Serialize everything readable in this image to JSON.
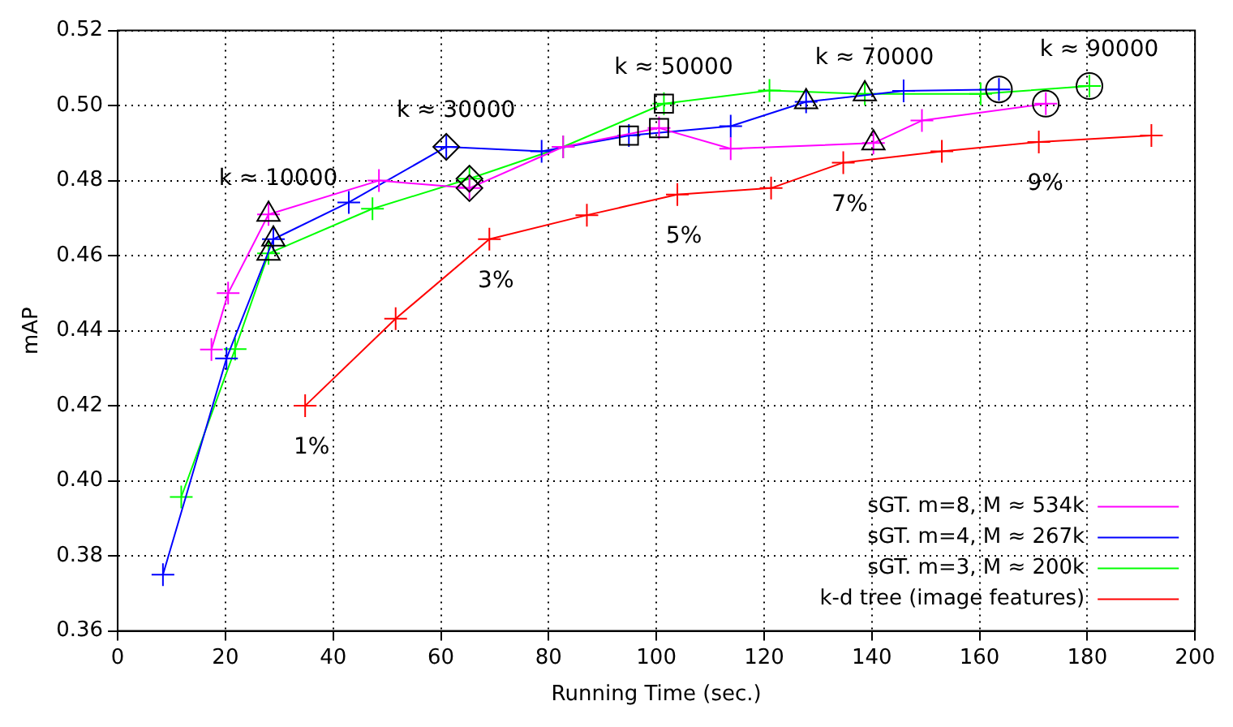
{
  "chart_data": {
    "type": "line",
    "xlabel": "Running Time (sec.)",
    "ylabel": "mAP",
    "xlim": [
      0,
      200
    ],
    "xticks": [
      0,
      20,
      40,
      60,
      80,
      100,
      120,
      140,
      160,
      180,
      200
    ],
    "ylim": [
      0.36,
      0.52
    ],
    "yticks": [
      {
        "value": 0.36,
        "label": "0.36"
      },
      {
        "value": 0.38,
        "label": "0.38"
      },
      {
        "value": 0.4,
        "label": "0.40"
      },
      {
        "value": 0.42,
        "label": "0.42"
      },
      {
        "value": 0.44,
        "label": "0.44"
      },
      {
        "value": 0.46,
        "label": "0.46"
      },
      {
        "value": 0.48,
        "label": "0.48"
      },
      {
        "value": 0.5,
        "label": "0.50"
      },
      {
        "value": 0.52,
        "label": "0.52"
      }
    ],
    "grid": true,
    "legend": "bottom right",
    "marker": "cross",
    "line_style": "solid",
    "series": [
      {
        "name": "sGT. m=8, M ≈ 534k",
        "color": "#ff00ff",
        "x": [
          17.4,
          20.5,
          28,
          48.5,
          65.3,
          82.7,
          100.5,
          113.8,
          140.3,
          149.3,
          172.3
        ],
        "values": [
          0.435,
          0.45,
          0.471,
          0.48,
          0.478,
          0.489,
          0.494,
          0.4885,
          0.49,
          0.496,
          0.5005
        ]
      },
      {
        "name": "sGT. m=4, M ≈ 267k",
        "color": "#0000ff",
        "x": [
          8.4,
          20.2,
          28.9,
          42.9,
          61,
          78.7,
          94.9,
          113.8,
          127.8,
          145.9,
          163.6
        ],
        "values": [
          0.375,
          0.4326,
          0.4644,
          0.4742,
          0.489,
          0.4878,
          0.492,
          0.4945,
          0.501,
          0.5039,
          0.5043
        ]
      },
      {
        "name": "sGT. m=3, M ≈ 200k",
        "color": "#00ff00",
        "x": [
          11.8,
          21.8,
          28,
          47.3,
          65.3,
          82.7,
          101.4,
          121,
          138.7,
          160.2,
          180.4
        ],
        "values": [
          0.3957,
          0.4351,
          0.4606,
          0.4725,
          0.4805,
          0.489,
          0.5005,
          0.504,
          0.5031,
          0.5031,
          0.5052
        ]
      },
      {
        "name": "k-d tree (image features)",
        "color": "#ff0000",
        "x": [
          34.8,
          51.6,
          69,
          87.1,
          103.9,
          121.3,
          134.7,
          153,
          171,
          191.9
        ],
        "values": [
          0.42,
          0.4432,
          0.4644,
          0.4708,
          0.4763,
          0.478,
          0.4848,
          0.4878,
          0.4903,
          0.492
        ]
      },
      {
        "type": "scatter",
        "color": "#000000",
        "marker": "triangle",
        "x": [
          28,
          28.9,
          28
        ],
        "values": [
          0.471,
          0.4644,
          0.4606
        ]
      },
      {
        "type": "scatter",
        "color": "#000000",
        "marker": "diamond",
        "x": [
          61,
          65.3,
          65.3
        ],
        "values": [
          0.489,
          0.478,
          0.4805
        ]
      },
      {
        "type": "scatter",
        "color": "#000000",
        "marker": "square",
        "x": [
          100.5,
          94.9,
          101.4
        ],
        "values": [
          0.494,
          0.492,
          0.5005
        ]
      },
      {
        "type": "scatter",
        "color": "#000000",
        "marker": "triangle",
        "x": [
          127.8,
          138.7,
          140.3
        ],
        "values": [
          0.501,
          0.5031,
          0.49
        ]
      },
      {
        "type": "scatter",
        "color": "#000000",
        "marker": "circle",
        "x": [
          163.6,
          172.3,
          180.4
        ],
        "values": [
          0.5043,
          0.5005,
          0.5052
        ]
      }
    ],
    "annotations": [
      {
        "text": "k ≈ 10000",
        "x": 28,
        "y": 0.471
      },
      {
        "text": "k ≈ 30000",
        "x": 61,
        "y": 0.489
      },
      {
        "text": "k ≈ 50000",
        "x": 101.4,
        "y": 0.5005
      },
      {
        "text": "k ≈ 70000",
        "x": 138.7,
        "y": 0.5031
      },
      {
        "text": "k ≈ 90000",
        "x": 180.4,
        "y": 0.5052
      },
      {
        "text": "1%",
        "x": 34.8,
        "y": 0.42
      },
      {
        "text": "3%",
        "x": 69,
        "y": 0.4644
      },
      {
        "text": "5%",
        "x": 103.9,
        "y": 0.4763
      },
      {
        "text": "7%",
        "x": 134.7,
        "y": 0.4848
      },
      {
        "text": "9%",
        "x": 171,
        "y": 0.4903
      }
    ]
  }
}
